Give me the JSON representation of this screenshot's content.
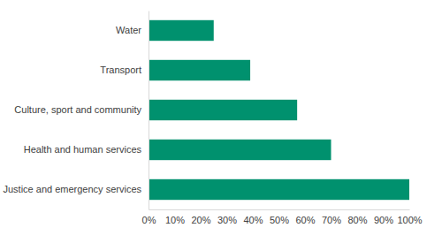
{
  "chart_data": {
    "type": "bar",
    "orientation": "horizontal",
    "categories": [
      "Water",
      "Transport",
      "Culture, sport and community",
      "Health and human services",
      "Justice and emergency services"
    ],
    "values": [
      25,
      39,
      57,
      70,
      100
    ],
    "color": "#00916E",
    "xlim": [
      0,
      100
    ],
    "xticks": [
      {
        "value": 0,
        "label": "0%"
      },
      {
        "value": 10,
        "label": "10%"
      },
      {
        "value": 20,
        "label": "20%"
      },
      {
        "value": 30,
        "label": "30%"
      },
      {
        "value": 40,
        "label": "40%"
      },
      {
        "value": 50,
        "label": "50%"
      },
      {
        "value": 60,
        "label": "60%"
      },
      {
        "value": 70,
        "label": "70%"
      },
      {
        "value": 80,
        "label": "80%"
      },
      {
        "value": 90,
        "label": "90%"
      },
      {
        "value": 100,
        "label": "100%"
      }
    ],
    "grid": false
  }
}
